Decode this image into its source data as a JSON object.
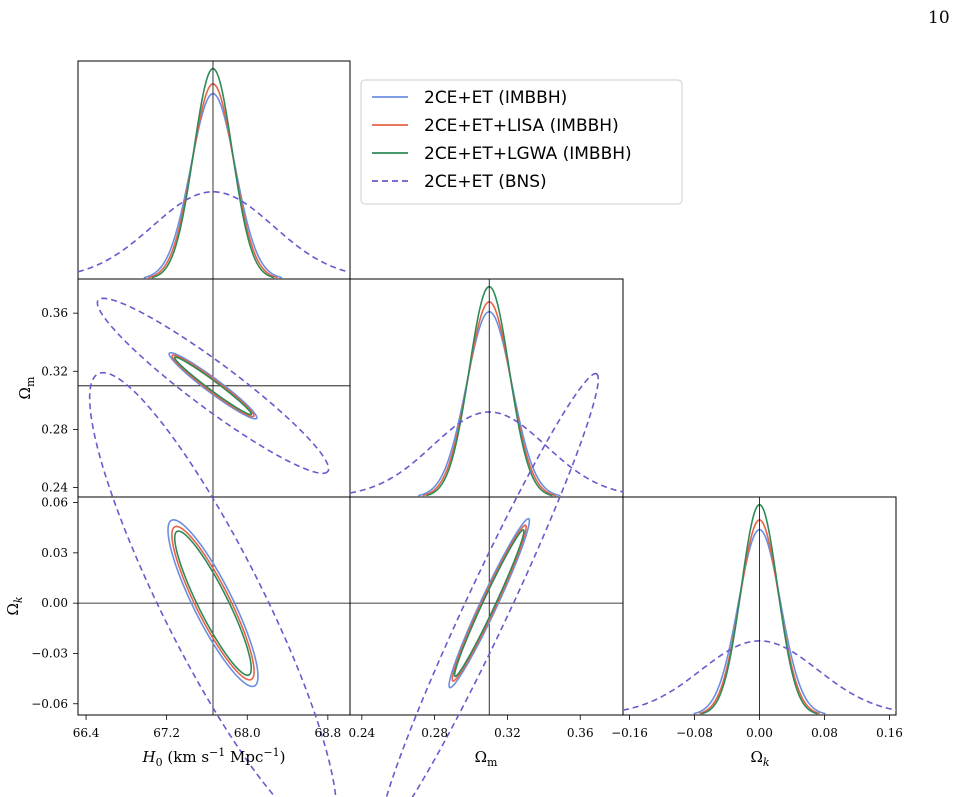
{
  "page": {
    "number": "10"
  },
  "chart_data": {
    "type": "corner",
    "fiducial": {
      "H0": 67.66,
      "Om": 0.31,
      "Ok": 0.0
    },
    "params": [
      {
        "key": "H0",
        "label": "H_0 (km s^-1 Mpc^-1)",
        "range": [
          66.32,
          69.02
        ],
        "ticks": [
          "66.4",
          "67.2",
          "68.0",
          "68.8"
        ]
      },
      {
        "key": "Om",
        "label": "Ω_m",
        "range": [
          0.2335,
          0.3835
        ],
        "ticks": [
          "0.24",
          "0.28",
          "0.32",
          "0.36"
        ]
      },
      {
        "key": "Ok",
        "label": "Ω_k",
        "range": [
          -0.168,
          0.168
        ],
        "ticks": [
          "−0.16",
          "−0.08",
          "0.00",
          "0.08",
          "0.16"
        ]
      }
    ],
    "ticks_y": {
      "Om": [
        "0.24",
        "0.28",
        "0.32",
        "0.36"
      ],
      "Ok": [
        "−0.06",
        "−0.03",
        "0.00",
        "0.03",
        "0.06"
      ]
    },
    "ok_row_range": [
      -0.0667,
      0.0633
    ],
    "series": [
      {
        "name": "2CE+ET (IMBBH)",
        "color": "#6b8fe0",
        "dash": "",
        "sigma": {
          "H0": 0.22,
          "Om": 0.0125,
          "Ok": 0.0259
        },
        "peaks": {
          "H0": 0.85,
          "Om": 0.85,
          "Ok": 0.85
        },
        "ellipses": {
          "Om_vs_H0": {
            "a": 1.0,
            "b": 0.13
          },
          "Ok_vs_H0": {
            "a": 1.0,
            "b": 0.21
          },
          "Ok_vs_Om": {
            "a": 1.0,
            "b": 0.09
          }
        }
      },
      {
        "name": "2CE+ET+LISA (IMBBH)",
        "color": "#e8624a",
        "dash": "",
        "sigma": {
          "H0": 0.205,
          "Om": 0.0117,
          "Ok": 0.0238
        },
        "peaks": {
          "H0": 0.895,
          "Om": 0.895,
          "Ok": 0.895
        },
        "ellipses": {
          "Om_vs_H0": {
            "a": 0.96,
            "b": 0.11
          },
          "Ok_vs_H0": {
            "a": 0.96,
            "b": 0.19
          },
          "Ok_vs_Om": {
            "a": 0.96,
            "b": 0.08
          }
        }
      },
      {
        "name": "2CE+ET+LGWA (IMBBH)",
        "color": "#2e8b57",
        "dash": "",
        "sigma": {
          "H0": 0.192,
          "Om": 0.011,
          "Ok": 0.0224
        },
        "peaks": {
          "H0": 0.965,
          "Om": 0.965,
          "Ok": 0.965
        },
        "ellipses": {
          "Om_vs_H0": {
            "a": 0.93,
            "b": 0.09
          },
          "Ok_vs_H0": {
            "a": 0.93,
            "b": 0.17
          },
          "Ok_vs_Om": {
            "a": 0.93,
            "b": 0.07
          }
        }
      },
      {
        "name": "2CE+ET (BNS)",
        "color": "#6a5acd",
        "dash": "6,4",
        "sigma": {
          "H0": 0.6,
          "Om": 0.031,
          "Ok": 0.072
        },
        "peaks": {
          "H0": 0.4,
          "Om": 0.39,
          "Ok": 0.34
        },
        "ellipses": {
          "Om_vs_H0": {
            "a": 2.65,
            "b": 0.42
          },
          "Ok_vs_H0": {
            "a": 2.65,
            "b": 0.52
          },
          "Ok_vs_Om": {
            "a": 2.65,
            "b": 0.23
          }
        }
      }
    ],
    "legend": {
      "placement": "upper-right",
      "entries": [
        "2CE+ET (IMBBH)",
        "2CE+ET+LISA (IMBBH)",
        "2CE+ET+LGWA (IMBBH)",
        "2CE+ET (BNS)"
      ]
    },
    "grid": false
  }
}
